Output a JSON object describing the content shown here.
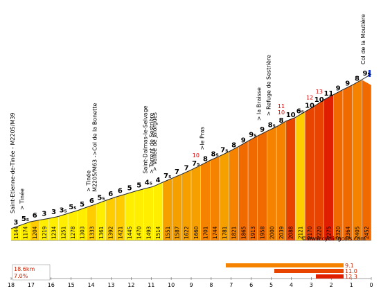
{
  "chart_data": {
    "type": "area",
    "title": "",
    "distances_km": [
      18,
      17,
      16,
      15,
      14,
      13,
      12,
      11,
      10,
      9,
      8,
      7,
      6,
      5,
      4,
      3,
      2,
      1,
      0
    ],
    "segments": [
      {
        "g": "3",
        "alt": "1144"
      },
      {
        "g": "5₅",
        "alt": "1174"
      },
      {
        "g": "6",
        "alt": "1204"
      },
      {
        "g": "3",
        "alt": "1219"
      },
      {
        "g": "3",
        "alt": "1234"
      },
      {
        "g": "3₅",
        "alt": "1251"
      },
      {
        "g": "5₅",
        "alt": "1278"
      },
      {
        "g": "5",
        "alt": "1303"
      },
      {
        "g": "6",
        "alt": "1333"
      },
      {
        "g": "5₅",
        "alt": "1361"
      },
      {
        "g": "6",
        "alt": "1392"
      },
      {
        "g": "6",
        "alt": "1421"
      },
      {
        "g": "5",
        "alt": "1445"
      },
      {
        "g": "5",
        "alt": "1470"
      },
      {
        "g": "4₅",
        "alt": "1493"
      },
      {
        "g": "4",
        "alt": "1514"
      },
      {
        "g": "7₅",
        "alt": "1551"
      },
      {
        "g": "7",
        "alt": "1587"
      },
      {
        "g": "7",
        "alt": "1622"
      },
      {
        "g": "7₅",
        "alt": "1660"
      },
      {
        "g": "8",
        "alt": "1701"
      },
      {
        "g": "8₅",
        "alt": "1744"
      },
      {
        "g": "7₅",
        "alt": "1781"
      },
      {
        "g": "8",
        "alt": "1821"
      },
      {
        "g": "9",
        "alt": "1865"
      },
      {
        "g": "9₅",
        "alt": "1913"
      },
      {
        "g": "9",
        "alt": "1958"
      },
      {
        "g": "8₅",
        "alt": "2000"
      },
      {
        "g": "8",
        "alt": "2039"
      },
      {
        "g": "10",
        "alt": "2088"
      },
      {
        "g": "6₅",
        "alt": "2121"
      },
      {
        "g": "10",
        "alt": "2170"
      },
      {
        "g": "10",
        "alt": "2220"
      },
      {
        "g": "11",
        "alt": "2275"
      },
      {
        "g": "9",
        "alt": "2320"
      },
      {
        "g": "9",
        "alt": "2364"
      },
      {
        "g": "8",
        "alt": "2405"
      },
      {
        "g": "9₅",
        "alt": "2452"
      }
    ],
    "red_peaks": [
      {
        "value": "10",
        "segment": 19
      },
      {
        "value": "10",
        "segment": 28
      },
      {
        "value": "11",
        "segment": 28
      },
      {
        "value": "12",
        "segment": 31
      },
      {
        "value": "13",
        "segment": 32
      }
    ],
    "places": [
      {
        "label": "Saint-Etienne-de-Tinée - M2205/M39",
        "segment": 0
      },
      {
        "label": "> Tinée",
        "segment": 1
      },
      {
        "label": "> Tinée",
        "segment": 8
      },
      {
        "label": "M2205/M63 ->Col de la Bonette",
        "segment": 8
      },
      {
        "label": "Saint-Dalmas-le-Selvage",
        "segment": 14
      },
      {
        "label": "> Torrent de Sestrière",
        "segment": 14
      },
      {
        "label": "> Vallée de Jalorgues",
        "segment": 15
      },
      {
        "label": ">le Pras",
        "segment": 20
      },
      {
        "label": "> la Braisse",
        "segment": 26
      },
      {
        "label": "> Refuge de Sestrière",
        "segment": 27
      },
      {
        "label": "Col de la Moutière",
        "segment": 37
      }
    ],
    "stats": {
      "distance": "18.6km",
      "average": "7.0%"
    },
    "legend_bars": [
      "9.1",
      "11.0",
      "12.3"
    ],
    "watermark": "©www.cyclingcols.com"
  }
}
